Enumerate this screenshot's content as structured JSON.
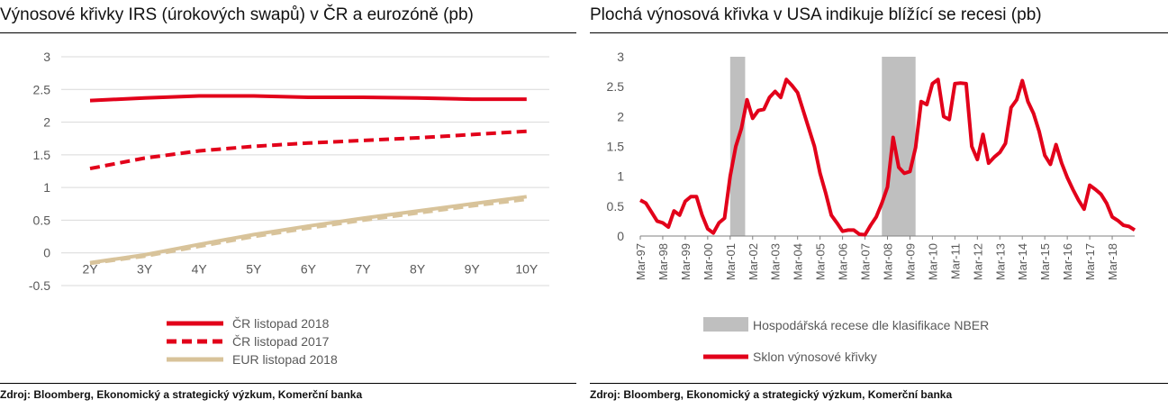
{
  "left": {
    "title": "Výnosové křivky IRS (úrokových swapů) v ČR a eurozóně (pb)",
    "source": "Zdroj: Bloomberg, Ekonomický a strategický výzkum, Komerční banka"
  },
  "right": {
    "title": "Plochá výnosová křivka v USA indikuje blížící se recesi (pb)",
    "source": "Zdroj: Bloomberg, Ekonomický a strategický výzkum, Komerční banka"
  },
  "colors": {
    "red": "#e2001a",
    "tan": "#d8c39a",
    "recession": "#bfbfbf",
    "grid": "#d9d9d9",
    "axis_text": "#595959"
  },
  "chart_data": [
    {
      "type": "line",
      "categories": [
        "2Y",
        "3Y",
        "4Y",
        "5Y",
        "6Y",
        "7Y",
        "8Y",
        "9Y",
        "10Y"
      ],
      "ylim": [
        -0.5,
        3
      ],
      "yticks": [
        "-0.5",
        "0",
        "0.5",
        "1",
        "1.5",
        "2",
        "2.5",
        "3"
      ],
      "grid": true,
      "legend_position": "bottom",
      "series": [
        {
          "name": "ČR listopad 2018",
          "style": "solid",
          "color": "#e2001a",
          "values": [
            2.33,
            2.37,
            2.4,
            2.4,
            2.38,
            2.38,
            2.37,
            2.35,
            2.35
          ]
        },
        {
          "name": "ČR listopad 2017",
          "style": "dashed",
          "color": "#e2001a",
          "values": [
            1.29,
            1.45,
            1.56,
            1.63,
            1.68,
            1.72,
            1.76,
            1.81,
            1.86
          ]
        },
        {
          "name": "EUR listopad 2018",
          "style": "solid",
          "color": "#d8c39a",
          "values": [
            -0.15,
            -0.03,
            0.13,
            0.28,
            0.41,
            0.53,
            0.64,
            0.75,
            0.86
          ]
        },
        {
          "name": "",
          "style": "dashed",
          "color": "#d8c39a",
          "legend": false,
          "values": [
            -0.16,
            -0.05,
            0.1,
            0.25,
            0.38,
            0.5,
            0.61,
            0.72,
            0.82
          ]
        }
      ]
    },
    {
      "type": "line",
      "x_start": "1997-03",
      "x_end": "2019-03",
      "step_months": 3,
      "x_ticks": [
        "Mar-97",
        "Mar-98",
        "Mar-99",
        "Mar-00",
        "Mar-01",
        "Mar-02",
        "Mar-03",
        "Mar-04",
        "Mar-05",
        "Mar-06",
        "Mar-07",
        "Mar-08",
        "Mar-09",
        "Mar-10",
        "Mar-11",
        "Mar-12",
        "Mar-13",
        "Mar-14",
        "Mar-15",
        "Mar-16",
        "Mar-17",
        "Mar-18"
      ],
      "ylim": [
        0,
        3
      ],
      "yticks": [
        "0",
        "0.5",
        "1",
        "1.5",
        "2",
        "2.5",
        "3"
      ],
      "grid": false,
      "legend_position": "bottom",
      "recessions": [
        {
          "start": "2001-03",
          "end": "2001-11"
        },
        {
          "start": "2007-12",
          "end": "2009-06"
        }
      ],
      "series": [
        {
          "name": "Sklon výnosové křivky",
          "color": "#e2001a",
          "values": [
            0.6,
            0.55,
            0.4,
            0.25,
            0.22,
            0.15,
            0.42,
            0.35,
            0.58,
            0.66,
            0.66,
            0.35,
            0.12,
            0.05,
            0.22,
            0.3,
            1.0,
            1.5,
            1.8,
            2.28,
            1.97,
            2.1,
            2.12,
            2.32,
            2.42,
            2.32,
            2.62,
            2.52,
            2.4,
            2.1,
            1.8,
            1.5,
            1.05,
            0.72,
            0.35,
            0.22,
            0.08,
            0.1,
            0.1,
            0.03,
            0.02,
            0.18,
            0.32,
            0.55,
            0.82,
            1.65,
            1.15,
            1.05,
            1.08,
            1.48,
            2.25,
            2.2,
            2.55,
            2.62,
            2.0,
            1.95,
            2.55,
            2.56,
            2.55,
            1.5,
            1.28,
            1.7,
            1.22,
            1.32,
            1.4,
            1.55,
            2.15,
            2.28,
            2.6,
            2.25,
            2.05,
            1.75,
            1.35,
            1.2,
            1.53,
            1.22,
            0.98,
            0.78,
            0.6,
            0.45,
            0.85,
            0.78,
            0.7,
            0.55,
            0.32,
            0.26,
            0.18,
            0.16,
            0.1
          ]
        }
      ],
      "legend": [
        {
          "name": "Hospodářská recese dle klasifikace NBER",
          "type": "area",
          "color": "#bfbfbf"
        },
        {
          "name": "Sklon výnosové křivky",
          "type": "line",
          "color": "#e2001a"
        }
      ]
    }
  ]
}
